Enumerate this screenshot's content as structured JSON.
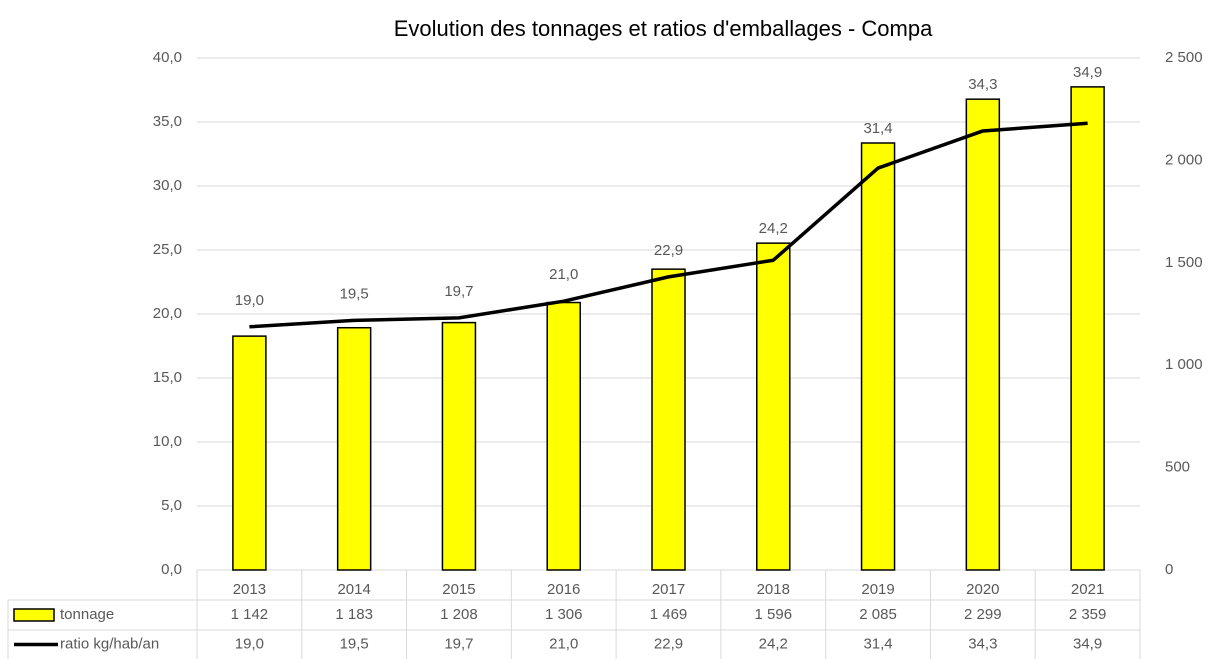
{
  "chart_data": {
    "type": "bar_line_table",
    "title": "Evolution des tonnages et ratios d'emballages - Compa",
    "categories": [
      "2013",
      "2014",
      "2015",
      "2016",
      "2017",
      "2018",
      "2019",
      "2020",
      "2021"
    ],
    "series": [
      {
        "name": "tonnage",
        "type": "bar",
        "axis": "y2",
        "color": "#ffff00",
        "values": [
          1142,
          1183,
          1208,
          1306,
          1469,
          1596,
          2085,
          2299,
          2359
        ],
        "value_labels": [
          "1 142",
          "1 183",
          "1 208",
          "1 306",
          "1 469",
          "1 596",
          "2 085",
          "2 299",
          "2 359"
        ]
      },
      {
        "name": "ratio kg/hab/an",
        "type": "line",
        "axis": "y",
        "color": "#000000",
        "values": [
          19.0,
          19.5,
          19.7,
          21.0,
          22.9,
          24.2,
          31.4,
          34.3,
          34.9
        ],
        "value_labels": [
          "19,0",
          "19,5",
          "19,7",
          "21,0",
          "22,9",
          "24,2",
          "31,4",
          "34,3",
          "34,9"
        ]
      }
    ],
    "ylim": [
      0,
      40
    ],
    "yticks": [
      {
        "value": 0,
        "label": "0,0"
      },
      {
        "value": 5,
        "label": "5,0"
      },
      {
        "value": 10,
        "label": "10,0"
      },
      {
        "value": 15,
        "label": "15,0"
      },
      {
        "value": 20,
        "label": "20,0"
      },
      {
        "value": 25,
        "label": "25,0"
      },
      {
        "value": 30,
        "label": "30,0"
      },
      {
        "value": 35,
        "label": "35,0"
      },
      {
        "value": 40,
        "label": "40,0"
      }
    ],
    "y2lim": [
      0,
      2500
    ],
    "y2ticks": [
      0,
      500,
      {
        "value": 1000,
        "label": "1 000"
      },
      {
        "value": 1500,
        "label": "1 500"
      },
      {
        "value": 2000,
        "label": "2 000"
      },
      {
        "value": 2500,
        "label": "2 500"
      }
    ],
    "grid": true
  }
}
